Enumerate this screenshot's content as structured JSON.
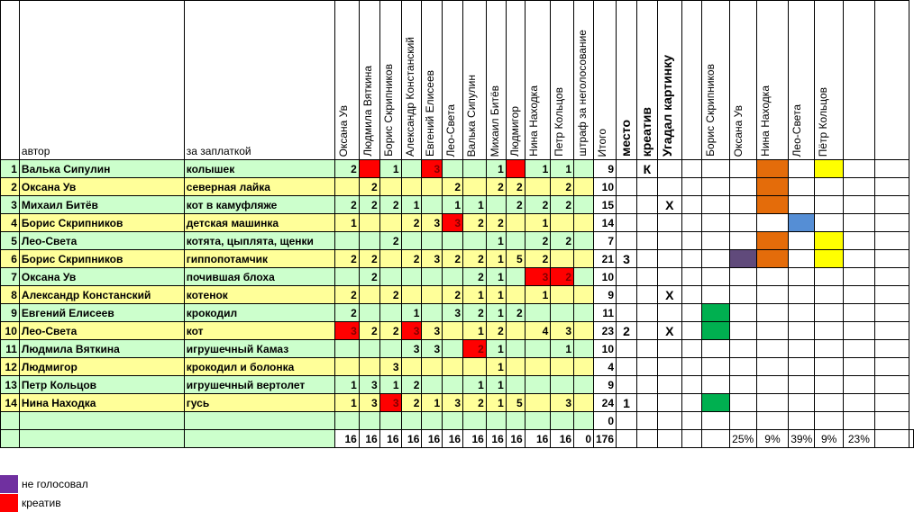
{
  "headers": {
    "author": "автор",
    "item": "за заплаткой",
    "voters": [
      "Оксана Ув",
      "Людмила Вяткина",
      "Борис Скрипников",
      "Александр Констанский",
      "Евгений Елисеев",
      "Лео-Света",
      "Валька Сипулин",
      "Михаил Битёв",
      "Людмигор",
      "Нина Находка",
      "Петр Кольцов",
      "штраф за неголосование"
    ],
    "total": "Итого",
    "place": "место",
    "creative": "креатив",
    "guessed": "Угадал картинку",
    "guessers": [
      "Борис Скрипников",
      "Оксана Ув",
      "Нина Находка",
      "Лео-Света",
      "Пётр Кольцов"
    ]
  },
  "rows": [
    {
      "n": "1",
      "author": "Валька Сипулин",
      "item": "колышек",
      "votes": [
        "2",
        "R",
        "1",
        "",
        "3R",
        "",
        "",
        "1",
        "R",
        "1",
        "1",
        ""
      ],
      "total": "9",
      "place": "",
      "creative": "К",
      "guessed": "",
      "marks": [
        "",
        "",
        "orange",
        "",
        "yellow"
      ]
    },
    {
      "n": "2",
      "author": "Оксана Ув",
      "item": "северная лайка",
      "votes": [
        "",
        "2",
        "",
        "",
        "",
        "2",
        "",
        "2",
        "2",
        "",
        "2",
        ""
      ],
      "total": "10",
      "place": "",
      "creative": "",
      "guessed": "",
      "marks": [
        "",
        "",
        "orange",
        "",
        ""
      ]
    },
    {
      "n": "3",
      "author": "Михаил Битёв",
      "item": "кот в камуфляже",
      "votes": [
        "2",
        "2",
        "2",
        "1",
        "",
        "1",
        "1",
        "",
        "2",
        "2",
        "2",
        ""
      ],
      "total": "15",
      "place": "",
      "creative": "",
      "guessed": "X",
      "marks": [
        "",
        "",
        "orange",
        "",
        ""
      ]
    },
    {
      "n": "4",
      "author": "Борис Скрипников",
      "item": "детская машинка",
      "votes": [
        "1",
        "",
        "",
        "2",
        "3",
        "3R",
        "2",
        "2",
        "",
        "1",
        "",
        ""
      ],
      "total": "14",
      "place": "",
      "creative": "",
      "guessed": "",
      "marks": [
        "",
        "",
        "",
        "blue",
        ""
      ]
    },
    {
      "n": "5",
      "author": "Лео-Света",
      "item": "котята, цыплята, щенки",
      "votes": [
        "",
        "",
        "2",
        "",
        "",
        "",
        "",
        "1",
        "",
        "2",
        "2",
        ""
      ],
      "total": "7",
      "place": "",
      "creative": "",
      "guessed": "",
      "marks": [
        "",
        "",
        "orange",
        "",
        "yellow"
      ]
    },
    {
      "n": "6",
      "author": "Борис Скрипников",
      "item": "гиппопотамчик",
      "votes": [
        "2",
        "2",
        "",
        "2",
        "3",
        "2",
        "2",
        "1",
        "5",
        "2",
        "",
        ""
      ],
      "total": "21",
      "place": "3",
      "creative": "",
      "guessed": "",
      "marks": [
        "",
        "purple",
        "orange",
        "",
        "yellow"
      ]
    },
    {
      "n": "7",
      "author": "Оксана Ув",
      "item": "почившая блоха",
      "votes": [
        "",
        "2",
        "",
        "",
        "",
        "",
        "2",
        "1",
        "",
        "3R",
        "2R",
        ""
      ],
      "total": "10",
      "place": "",
      "creative": "",
      "guessed": "",
      "marks": [
        "",
        "",
        "",
        "",
        ""
      ]
    },
    {
      "n": "8",
      "author": "Александр Констанский",
      "item": "котенок",
      "votes": [
        "2",
        "",
        "2",
        "",
        "",
        "2",
        "1",
        "1",
        "",
        "1",
        "",
        ""
      ],
      "total": "9",
      "place": "",
      "creative": "",
      "guessed": "X",
      "marks": [
        "",
        "",
        "",
        "",
        ""
      ]
    },
    {
      "n": "9",
      "author": "Евгений Елисеев",
      "item": "крокодил",
      "votes": [
        "2",
        "",
        "",
        "1",
        "",
        "3",
        "2",
        "1",
        "2",
        "",
        "",
        ""
      ],
      "total": "11",
      "place": "",
      "creative": "",
      "guessed": "",
      "marks": [
        "green",
        "",
        "",
        "",
        ""
      ]
    },
    {
      "n": "10",
      "author": "Лео-Света",
      "item": "кот",
      "votes": [
        "3R",
        "2",
        "2",
        "3R",
        "3",
        "",
        "1",
        "2",
        "",
        "4",
        "3",
        ""
      ],
      "total": "23",
      "place": "2",
      "creative": "",
      "guessed": "X",
      "marks": [
        "green",
        "",
        "",
        "",
        ""
      ]
    },
    {
      "n": "11",
      "author": "Людмила Вяткина",
      "item": "игрушечный Камаз",
      "votes": [
        "",
        "",
        "",
        "3",
        "3",
        "",
        "2R",
        "1",
        "",
        "",
        "1",
        ""
      ],
      "total": "10",
      "place": "",
      "creative": "",
      "guessed": "",
      "marks": [
        "",
        "",
        "",
        "",
        ""
      ]
    },
    {
      "n": "12",
      "author": "Людмигор",
      "item": "крокодил и болонка",
      "votes": [
        "",
        "",
        "3",
        "",
        "",
        "",
        "",
        "1",
        "",
        "",
        "",
        ""
      ],
      "total": "4",
      "place": "",
      "creative": "",
      "guessed": "",
      "marks": [
        "",
        "",
        "",
        "",
        ""
      ]
    },
    {
      "n": "13",
      "author": "Петр Кольцов",
      "item": "игрушечный вертолет",
      "votes": [
        "1",
        "3",
        "1",
        "2",
        "",
        "",
        "1",
        "1",
        "",
        "",
        "",
        ""
      ],
      "total": "9",
      "place": "",
      "creative": "",
      "guessed": "",
      "marks": [
        "",
        "",
        "",
        "",
        ""
      ]
    },
    {
      "n": "14",
      "author": "Нина Находка",
      "item": "гусь",
      "votes": [
        "1",
        "3",
        "3R",
        "2",
        "1",
        "3",
        "2",
        "1",
        "5",
        "",
        "3",
        ""
      ],
      "total": "24",
      "place": "1",
      "creative": "",
      "guessed": "",
      "marks": [
        "green",
        "",
        "",
        "",
        ""
      ]
    },
    {
      "n": "",
      "author": "",
      "item": "",
      "votes": [
        "",
        "",
        "",
        "",
        "",
        "",
        "",
        "",
        "",
        "",
        "",
        ""
      ],
      "total": "0",
      "place": "",
      "creative": "",
      "guessed": "",
      "marks": [
        "",
        "",
        "",
        "",
        ""
      ]
    }
  ],
  "totals": {
    "votes": [
      "16",
      "16",
      "16",
      "16",
      "16",
      "16",
      "16",
      "16",
      "16",
      "16",
      "16",
      "0"
    ],
    "total": "176",
    "percents": [
      "25%",
      "9%",
      "39%",
      "9%",
      "23%"
    ]
  },
  "legend": [
    {
      "label": "не голосовал",
      "color": "#7030a0"
    },
    {
      "label": "креатив",
      "color": "#ff0000"
    }
  ],
  "colors": {
    "orange": "#e46c0a",
    "yellow": "#ffff00",
    "blue": "#558ed5",
    "purple": "#604a7b",
    "green": "#00b050"
  }
}
